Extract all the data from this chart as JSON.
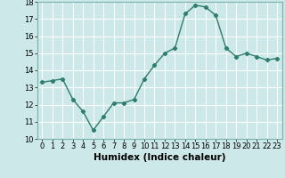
{
  "x": [
    0,
    1,
    2,
    3,
    4,
    5,
    6,
    7,
    8,
    9,
    10,
    11,
    12,
    13,
    14,
    15,
    16,
    17,
    18,
    19,
    20,
    21,
    22,
    23
  ],
  "y": [
    13.3,
    13.4,
    13.5,
    12.3,
    11.6,
    10.5,
    11.3,
    12.1,
    12.1,
    12.3,
    13.5,
    14.3,
    15.0,
    15.3,
    17.3,
    17.8,
    17.7,
    17.2,
    15.3,
    14.8,
    15.0,
    14.8,
    14.6,
    14.7
  ],
  "xlabel": "Humidex (Indice chaleur)",
  "ylim": [
    10,
    18
  ],
  "xlim_min": -0.5,
  "xlim_max": 23.5,
  "yticks": [
    10,
    11,
    12,
    13,
    14,
    15,
    16,
    17,
    18
  ],
  "xticks": [
    0,
    1,
    2,
    3,
    4,
    5,
    6,
    7,
    8,
    9,
    10,
    11,
    12,
    13,
    14,
    15,
    16,
    17,
    18,
    19,
    20,
    21,
    22,
    23
  ],
  "xtick_labels": [
    "0",
    "1",
    "2",
    "3",
    "4",
    "5",
    "6",
    "7",
    "8",
    "9",
    "10",
    "11",
    "12",
    "13",
    "14",
    "15",
    "16",
    "17",
    "18",
    "19",
    "20",
    "21",
    "22",
    "23"
  ],
  "line_color": "#2e7d6e",
  "marker": "D",
  "marker_size": 2.2,
  "bg_color": "#cce8e8",
  "grid_color": "#ffffff",
  "line_width": 1.0,
  "tick_fontsize": 6.0,
  "xlabel_fontsize": 7.5,
  "spine_color": "#7ab0b0"
}
